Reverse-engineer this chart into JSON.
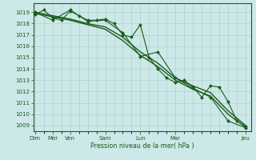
{
  "background_color": "#cce8e8",
  "grid_color": "#aacccc",
  "line_color": "#1a5c1a",
  "marker_color": "#1a5c1a",
  "text_color": "#1a5c1a",
  "xlabel_label": "Pression niveau de la mer( hPa )",
  "ylim": [
    1008.5,
    1019.8
  ],
  "yticks": [
    1009,
    1010,
    1011,
    1012,
    1013,
    1014,
    1015,
    1016,
    1017,
    1018,
    1019
  ],
  "xlim": [
    -0.1,
    12.3
  ],
  "day_tick_positions": [
    0,
    1,
    2,
    4,
    6,
    8,
    12
  ],
  "day_tick_labels": [
    "Dim",
    "Mer",
    "Ven",
    "Sam",
    "Lun",
    "Mar",
    "Jeu"
  ],
  "series": [
    {
      "x": [
        0,
        0.5,
        1.0,
        1.5,
        2.0,
        2.5,
        3.0,
        3.5,
        4.0,
        4.5,
        5.0,
        5.5,
        6.0,
        6.5,
        7.0,
        7.5,
        8.0,
        8.5,
        9.0,
        9.5,
        10.0,
        10.5,
        11.0,
        11.5,
        12.0
      ],
      "y": [
        1018.8,
        1019.2,
        1018.5,
        1018.3,
        1019.1,
        1018.7,
        1018.3,
        1018.3,
        1018.4,
        1018.0,
        1017.0,
        1016.8,
        1017.9,
        1015.0,
        1014.0,
        1013.2,
        1012.8,
        1013.0,
        1012.4,
        1011.5,
        1012.5,
        1012.4,
        1011.1,
        1009.4,
        1008.9
      ],
      "marker": "D",
      "markersize": 2.0,
      "linewidth": 0.8
    },
    {
      "x": [
        0,
        1,
        2,
        3,
        4,
        5,
        6,
        7,
        8,
        9,
        10,
        11,
        12
      ],
      "y": [
        1019.0,
        1018.3,
        1019.2,
        1018.2,
        1018.3,
        1017.2,
        1015.1,
        1015.5,
        1013.2,
        1012.3,
        1011.5,
        1009.4,
        1008.8
      ],
      "marker": "D",
      "markersize": 2.0,
      "linewidth": 0.8
    },
    {
      "x": [
        0,
        1,
        2,
        3,
        4,
        5,
        6,
        7,
        8,
        9,
        10,
        11,
        12
      ],
      "y": [
        1018.9,
        1018.6,
        1018.3,
        1017.9,
        1017.5,
        1016.5,
        1015.2,
        1014.2,
        1013.0,
        1012.2,
        1011.6,
        1010.0,
        1008.85
      ],
      "marker": null,
      "markersize": 0,
      "linewidth": 1.0
    },
    {
      "x": [
        0,
        1,
        2,
        3,
        4,
        5,
        6,
        7,
        8,
        9,
        10,
        11,
        12
      ],
      "y": [
        1019.0,
        1018.7,
        1018.4,
        1018.0,
        1017.7,
        1016.8,
        1015.5,
        1014.5,
        1013.2,
        1012.5,
        1011.9,
        1010.3,
        1009.0
      ],
      "marker": null,
      "markersize": 0,
      "linewidth": 1.0
    }
  ]
}
